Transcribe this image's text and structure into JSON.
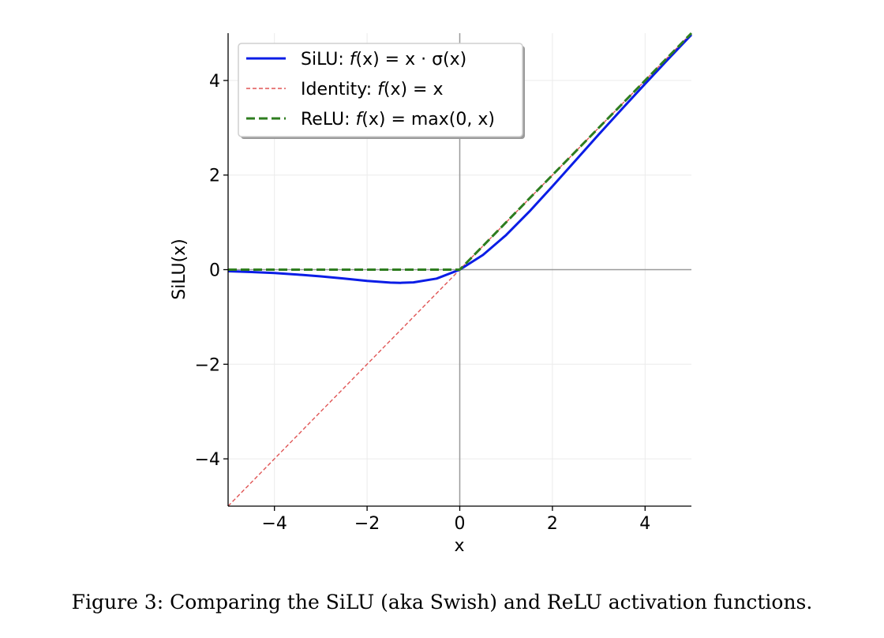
{
  "caption": "Figure 3: Comparing the SiLU (aka Swish) and ReLU activation functions.",
  "chart_data": {
    "type": "line",
    "title": "",
    "xlabel": "x",
    "ylabel": "SiLU(x)",
    "xlim": [
      -5,
      5
    ],
    "ylim": [
      -5,
      5
    ],
    "xticks": [
      -4,
      -2,
      0,
      2,
      4
    ],
    "yticks": [
      -4,
      -2,
      0,
      2,
      4
    ],
    "xtick_labels": [
      "−4",
      "−2",
      "0",
      "2",
      "4"
    ],
    "ytick_labels": [
      "−4",
      "−2",
      "0",
      "2",
      "4"
    ],
    "grid": true,
    "legend_position": "top-left",
    "x": [
      -5,
      -4.5,
      -4,
      -3.5,
      -3,
      -2.5,
      -2,
      -1.5,
      -1.28,
      -1,
      -0.5,
      0,
      0.5,
      1,
      1.5,
      2,
      2.5,
      3,
      3.5,
      4,
      4.5,
      5
    ],
    "series": [
      {
        "name": "SiLU: f(x) = x · σ(x)",
        "color": "#0a1de6",
        "style": "solid",
        "values": [
          -0.033,
          -0.05,
          -0.072,
          -0.103,
          -0.142,
          -0.189,
          -0.238,
          -0.274,
          -0.278,
          -0.269,
          -0.189,
          0,
          0.311,
          0.731,
          1.226,
          1.762,
          2.311,
          2.858,
          3.397,
          3.928,
          4.45,
          4.967
        ]
      },
      {
        "name": "Identity: f(x) = x",
        "color": "#e05555",
        "style": "dashed-thin",
        "values": [
          -5,
          -4.5,
          -4,
          -3.5,
          -3,
          -2.5,
          -2,
          -1.5,
          -1.28,
          -1,
          -0.5,
          0,
          0.5,
          1,
          1.5,
          2,
          2.5,
          3,
          3.5,
          4,
          4.5,
          5
        ]
      },
      {
        "name": "ReLU: f(x) = max(0, x)",
        "color": "#2e7d1f",
        "style": "dashed-thick",
        "values": [
          0,
          0,
          0,
          0,
          0,
          0,
          0,
          0,
          0,
          0,
          0,
          0,
          0.5,
          1,
          1.5,
          2,
          2.5,
          3,
          3.5,
          4,
          4.5,
          5
        ]
      }
    ],
    "legend": [
      {
        "prefix": "SiLU: ",
        "f": "f",
        "rest": "(x) = x · σ(x)"
      },
      {
        "prefix": "Identity: ",
        "f": "f",
        "rest": "(x) = x"
      },
      {
        "prefix": "ReLU: ",
        "f": "f",
        "rest": "(x) = max(0, x)"
      }
    ]
  }
}
